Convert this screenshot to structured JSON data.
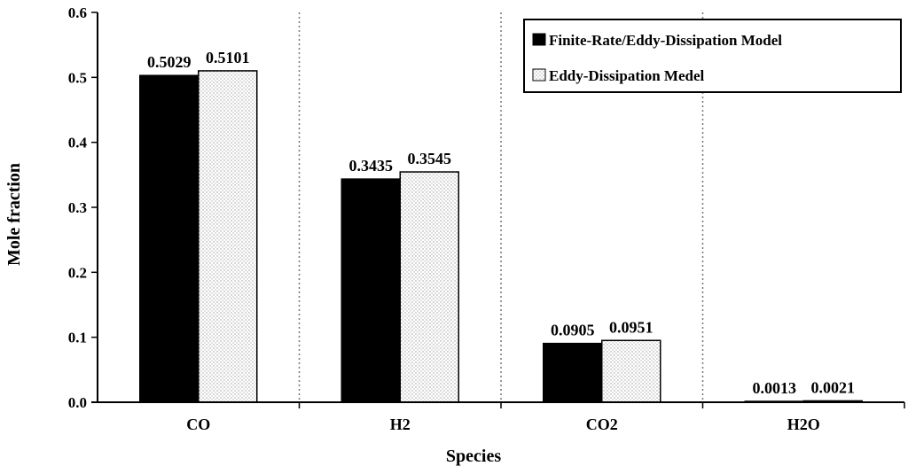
{
  "chart_data": {
    "type": "bar",
    "title": "",
    "xlabel": "Species",
    "ylabel": "Mole fraction",
    "ylim": [
      0,
      0.6
    ],
    "yticks": [
      "0.0",
      "0.1",
      "0.2",
      "0.3",
      "0.4",
      "0.5",
      "0.6"
    ],
    "categories": [
      "CO",
      "H2",
      "CO2",
      "H2O"
    ],
    "series": [
      {
        "name": "Finite-Rate/Eddy-Dissipation Model",
        "values": [
          0.5029,
          0.3435,
          0.0905,
          0.0013
        ],
        "labels": [
          "0.5029",
          "0.3435",
          "0.0905",
          "0.0013"
        ],
        "color": "#000000",
        "pattern": "solid"
      },
      {
        "name": "Eddy-Dissipation Medel",
        "values": [
          0.5101,
          0.3545,
          0.0951,
          0.0021
        ],
        "labels": [
          "0.5101",
          "0.3545",
          "0.0951",
          "0.0021"
        ],
        "color": "#ffffff",
        "pattern": "dotted"
      }
    ],
    "legend_position": "top-right",
    "category_separators": "dotted"
  }
}
